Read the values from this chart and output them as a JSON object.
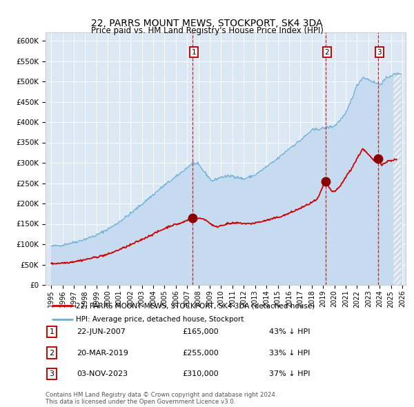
{
  "title": "22, PARRS MOUNT MEWS, STOCKPORT, SK4 3DA",
  "subtitle": "Price paid vs. HM Land Registry's House Price Index (HPI)",
  "ylim": [
    0,
    620000
  ],
  "yticks": [
    0,
    50000,
    100000,
    150000,
    200000,
    250000,
    300000,
    350000,
    400000,
    450000,
    500000,
    550000,
    600000
  ],
  "ytick_labels": [
    "£0",
    "£50K",
    "£100K",
    "£150K",
    "£200K",
    "£250K",
    "£300K",
    "£350K",
    "£400K",
    "£450K",
    "£500K",
    "£550K",
    "£600K"
  ],
  "hpi_color": "#6baed6",
  "hpi_fill": "#c6dbef",
  "price_color": "#cc0000",
  "marker_color": "#8b0000",
  "vline_color": "#cc0000",
  "transaction_prices": [
    165000,
    255000,
    310000
  ],
  "transaction_t": [
    2007.458,
    2019.208,
    2023.833
  ],
  "transaction_labels": [
    "1",
    "2",
    "3"
  ],
  "table_rows": [
    [
      "1",
      "22-JUN-2007",
      "£165,000",
      "43% ↓ HPI"
    ],
    [
      "2",
      "20-MAR-2019",
      "£255,000",
      "33% ↓ HPI"
    ],
    [
      "3",
      "03-NOV-2023",
      "£310,000",
      "37% ↓ HPI"
    ]
  ],
  "footnote": "Contains HM Land Registry data © Crown copyright and database right 2024.\nThis data is licensed under the Open Government Licence v3.0.",
  "legend_entries": [
    "22, PARRS MOUNT MEWS, STOCKPORT, SK4 3DA (detached house)",
    "HPI: Average price, detached house, Stockport"
  ],
  "plot_bg": "#dce9f5",
  "hpi_anchors_t": [
    1995.0,
    1996.0,
    1997.5,
    1999.0,
    2000.5,
    2002.0,
    2003.5,
    2005.0,
    2006.0,
    2007.5,
    2008.0,
    2009.2,
    2010.0,
    2011.0,
    2012.0,
    2013.0,
    2014.0,
    2015.0,
    2016.0,
    2017.0,
    2018.0,
    2019.0,
    2020.0,
    2021.0,
    2022.0,
    2022.5,
    2023.0,
    2023.5,
    2024.0,
    2024.5,
    2025.0,
    2025.9
  ],
  "hpi_anchors_v": [
    95000,
    98000,
    108000,
    122000,
    145000,
    175000,
    210000,
    245000,
    265000,
    300000,
    295000,
    255000,
    265000,
    268000,
    260000,
    270000,
    290000,
    310000,
    335000,
    355000,
    380000,
    385000,
    390000,
    420000,
    490000,
    510000,
    505000,
    498000,
    492000,
    505000,
    515000,
    520000
  ],
  "price_anchors_t": [
    1995.0,
    1996.5,
    1998.0,
    2000.0,
    2002.0,
    2004.0,
    2005.5,
    2006.5,
    2007.458,
    2008.5,
    2009.5,
    2010.5,
    2011.5,
    2012.5,
    2013.5,
    2014.5,
    2015.5,
    2016.5,
    2017.5,
    2018.5,
    2019.208,
    2019.7,
    2020.0,
    2020.5,
    2021.0,
    2021.5,
    2022.0,
    2022.5,
    2023.0,
    2023.5,
    2023.833,
    2024.2,
    2024.8,
    2025.5
  ],
  "price_anchors_v": [
    52000,
    55000,
    62000,
    75000,
    98000,
    125000,
    145000,
    152000,
    165000,
    162000,
    142000,
    150000,
    152000,
    150000,
    155000,
    162000,
    170000,
    182000,
    195000,
    210000,
    255000,
    232000,
    228000,
    242000,
    265000,
    285000,
    310000,
    335000,
    320000,
    305000,
    310000,
    295000,
    305000,
    308000
  ],
  "hatch_start": 2025.2,
  "xlim": [
    1994.5,
    2026.3
  ]
}
